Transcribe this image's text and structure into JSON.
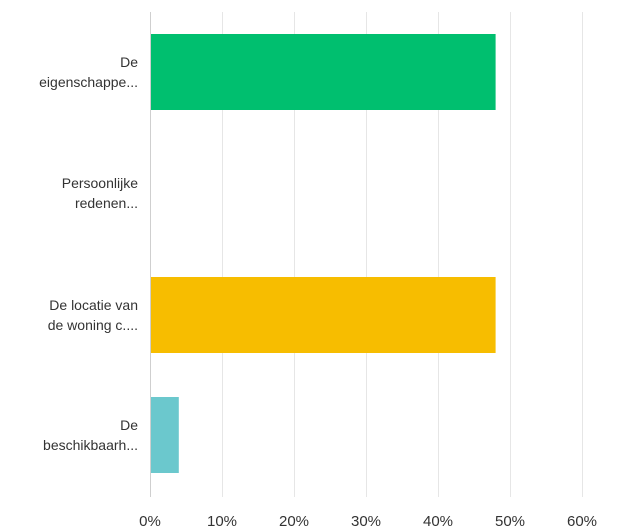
{
  "chart_data": {
    "type": "bar",
    "orientation": "horizontal",
    "categories": [
      [
        "De",
        "eigenschappe..."
      ],
      [
        "Persoonlijke",
        "redenen..."
      ],
      [
        "De locatie van",
        "de woning c...."
      ],
      [
        "De",
        "beschikbaarh..."
      ]
    ],
    "values": [
      48,
      0,
      48,
      4
    ],
    "unit": "%",
    "colors": [
      "#00bf6f",
      "#00bf6f",
      "#f7bd00",
      "#6bc8cd"
    ],
    "xlim": [
      0,
      60
    ],
    "x_ticks": [
      0,
      10,
      20,
      30,
      40,
      50,
      60
    ],
    "x_tick_labels": [
      "0%",
      "10%",
      "20%",
      "30%",
      "40%",
      "50%",
      "60%"
    ],
    "grid": true,
    "legend": "none",
    "title": "",
    "xlabel": "",
    "ylabel": ""
  }
}
